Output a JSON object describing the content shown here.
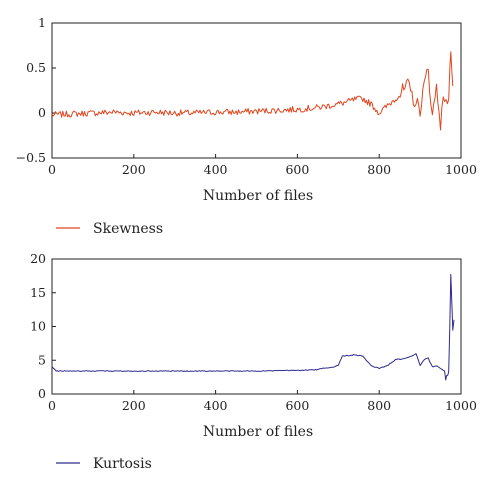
{
  "chart_data": [
    {
      "type": "line",
      "xlabel": "Number of files",
      "ylabel": "",
      "xlim": [
        0,
        1000
      ],
      "ylim": [
        -0.5,
        1
      ],
      "xticks": [
        0,
        200,
        400,
        600,
        800,
        1000
      ],
      "yticks": [
        -0.5,
        0,
        0.5,
        1
      ],
      "xtick_labels": [
        "0",
        "200",
        "400",
        "600",
        "800",
        "1000"
      ],
      "ytick_labels": [
        "−0.5",
        "0",
        "0.5",
        "1"
      ],
      "legend_position": "below-left",
      "grid": false,
      "series": [
        {
          "name": "Skewness",
          "color": "#e0461e",
          "points": [
            [
              0,
              -0.02
            ],
            [
              50,
              -0.01
            ],
            [
              100,
              0.0
            ],
            [
              150,
              0.01
            ],
            [
              200,
              0.0
            ],
            [
              250,
              0.01
            ],
            [
              300,
              0.0
            ],
            [
              350,
              0.0
            ],
            [
              400,
              0.01
            ],
            [
              450,
              0.01
            ],
            [
              500,
              0.02
            ],
            [
              550,
              0.03
            ],
            [
              600,
              0.04
            ],
            [
              650,
              0.06
            ],
            [
              700,
              0.1
            ],
            [
              720,
              0.12
            ],
            [
              740,
              0.15
            ],
            [
              760,
              0.16
            ],
            [
              780,
              0.1
            ],
            [
              800,
              0.0
            ],
            [
              820,
              0.08
            ],
            [
              840,
              0.16
            ],
            [
              860,
              0.25
            ],
            [
              870,
              0.3
            ],
            [
              880,
              0.2
            ],
            [
              890,
              0.1
            ],
            [
              900,
              0.05
            ],
            [
              910,
              0.3
            ],
            [
              920,
              0.5
            ],
            [
              930,
              -0.05
            ],
            [
              940,
              0.3
            ],
            [
              950,
              -0.1
            ],
            [
              960,
              0.2
            ],
            [
              970,
              0.1
            ],
            [
              975,
              0.75
            ],
            [
              980,
              0.3
            ]
          ]
        }
      ]
    },
    {
      "type": "line",
      "xlabel": "Number of files",
      "ylabel": "",
      "xlim": [
        0,
        1000
      ],
      "ylim": [
        0,
        20
      ],
      "xticks": [
        0,
        200,
        400,
        600,
        800,
        1000
      ],
      "yticks": [
        0,
        5,
        10,
        15,
        20
      ],
      "xtick_labels": [
        "0",
        "200",
        "400",
        "600",
        "800",
        "1000"
      ],
      "ytick_labels": [
        "0",
        "5",
        "10",
        "15",
        "20"
      ],
      "legend_position": "below-left",
      "grid": false,
      "series": [
        {
          "name": "Kurtosis",
          "color": "#2e2a8c",
          "points": [
            [
              0,
              4.1
            ],
            [
              10,
              3.4
            ],
            [
              100,
              3.4
            ],
            [
              200,
              3.4
            ],
            [
              300,
              3.4
            ],
            [
              400,
              3.4
            ],
            [
              500,
              3.4
            ],
            [
              600,
              3.5
            ],
            [
              650,
              3.6
            ],
            [
              660,
              3.8
            ],
            [
              690,
              4.0
            ],
            [
              700,
              4.3
            ],
            [
              710,
              5.6
            ],
            [
              740,
              5.8
            ],
            [
              760,
              5.6
            ],
            [
              780,
              4.2
            ],
            [
              800,
              3.8
            ],
            [
              820,
              4.2
            ],
            [
              840,
              5.1
            ],
            [
              860,
              5.2
            ],
            [
              880,
              5.6
            ],
            [
              890,
              6.0
            ],
            [
              900,
              4.2
            ],
            [
              910,
              5.1
            ],
            [
              920,
              5.3
            ],
            [
              930,
              4.0
            ],
            [
              940,
              4.2
            ],
            [
              950,
              3.8
            ],
            [
              960,
              3.4
            ],
            [
              965,
              2.9
            ],
            [
              970,
              3.2
            ],
            [
              975,
              17.0
            ],
            [
              978,
              13.0
            ],
            [
              980,
              9.0
            ],
            [
              983,
              11.0
            ]
          ]
        }
      ]
    }
  ]
}
